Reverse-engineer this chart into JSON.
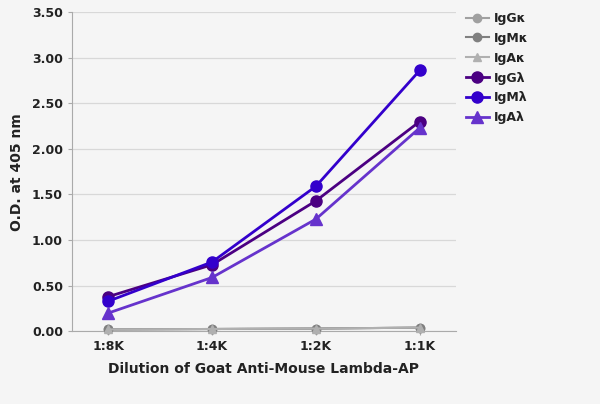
{
  "x_labels": [
    "1:8K",
    "1:4K",
    "1:2K",
    "1:1K"
  ],
  "x_values": [
    0,
    1,
    2,
    3
  ],
  "series": [
    {
      "label": "IgGκ",
      "color": "#a0a0a0",
      "marker": "o",
      "linewidth": 1.5,
      "markersize": 6,
      "values": [
        0.02,
        0.025,
        0.03,
        0.04
      ]
    },
    {
      "label": "IgMκ",
      "color": "#808080",
      "marker": "o",
      "linewidth": 1.5,
      "markersize": 6,
      "values": [
        0.02,
        0.025,
        0.03,
        0.04
      ]
    },
    {
      "label": "IgAκ",
      "color": "#b0b0b0",
      "marker": "^",
      "linewidth": 1.5,
      "markersize": 6,
      "values": [
        0.02,
        0.025,
        0.03,
        0.04
      ]
    },
    {
      "label": "IgGλ",
      "color": "#4b0082",
      "marker": "o",
      "linewidth": 2.0,
      "markersize": 8,
      "values": [
        0.38,
        0.73,
        1.43,
        2.3
      ]
    },
    {
      "label": "IgMλ",
      "color": "#3300cc",
      "marker": "o",
      "linewidth": 2.0,
      "markersize": 8,
      "values": [
        0.33,
        0.76,
        1.59,
        2.86
      ]
    },
    {
      "label": "IgAλ",
      "color": "#6633cc",
      "marker": "^",
      "linewidth": 2.0,
      "markersize": 8,
      "values": [
        0.2,
        0.59,
        1.23,
        2.23
      ]
    }
  ],
  "xlabel": "Dilution of Goat Anti-Mouse Lambda-AP",
  "ylabel": "O.D. at 405 nm",
  "ylim": [
    0.0,
    3.5
  ],
  "yticks": [
    0.0,
    0.5,
    1.0,
    1.5,
    2.0,
    2.5,
    3.0,
    3.5
  ],
  "bg_color": "#f5f5f5",
  "plot_bg_color": "#f5f5f5",
  "grid_color": "#d8d8d8",
  "legend_fontsize": 9,
  "axis_label_fontsize": 10,
  "tick_fontsize": 9,
  "font_color": "#222222"
}
